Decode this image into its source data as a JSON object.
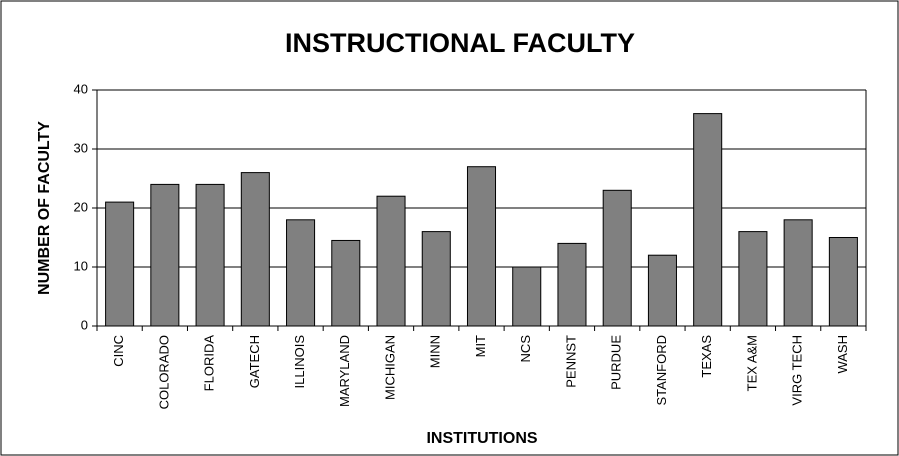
{
  "chart_data": {
    "type": "bar",
    "title": "INSTRUCTIONAL FACULTY",
    "x_label": "INSTITUTIONS",
    "y_label": "NUMBER OF FACULTY",
    "categories": [
      "CINC",
      "COLORADO",
      "FLORIDA",
      "GATECH",
      "ILLINOIS",
      "MARYLAND",
      "MICHIGAN",
      "MINN",
      "MIT",
      "NCS",
      "PENNST",
      "PURDUE",
      "STANFORD",
      "TEXAS",
      "TEX A&M",
      "VIRG TECH",
      "WASH"
    ],
    "values": [
      21,
      24,
      24,
      26,
      18,
      14.5,
      22,
      16,
      27,
      10,
      14,
      23,
      12,
      36,
      16,
      18,
      15
    ],
    "color": "#808080",
    "ylim": [
      0,
      40
    ],
    "yticks": [
      0,
      10,
      20,
      30,
      40
    ],
    "grid": true
  }
}
